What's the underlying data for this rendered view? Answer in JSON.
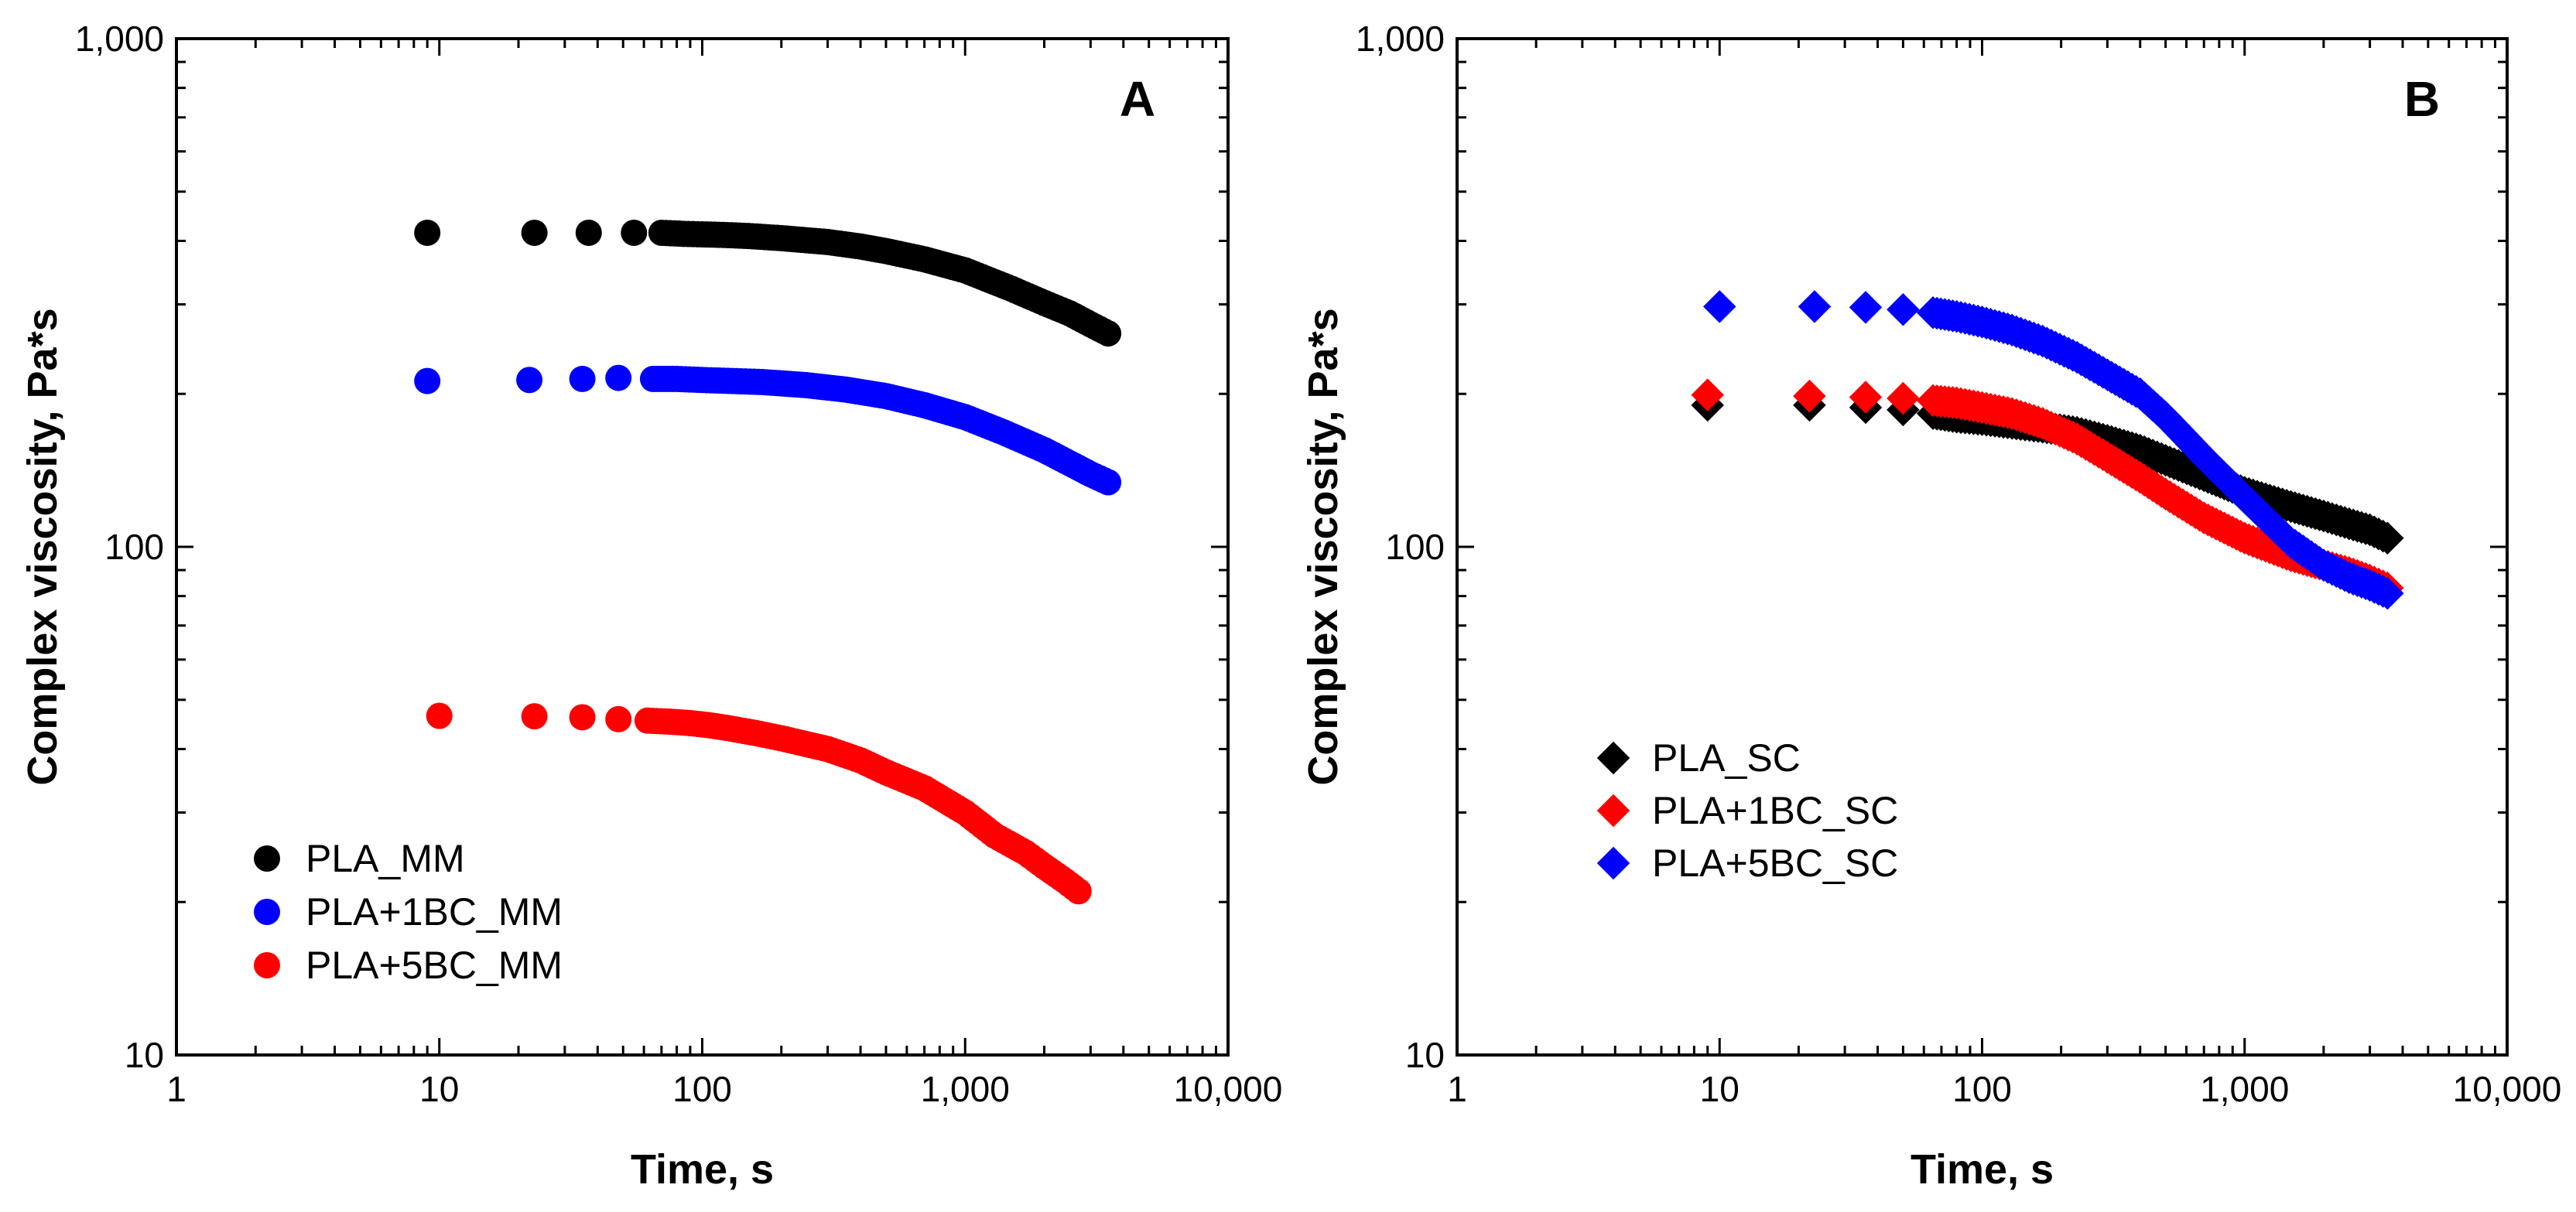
{
  "chart_data": [
    {
      "type": "scatter",
      "panel_label": "A",
      "xlabel": "Time, s",
      "ylabel": "Complex viscosity, Pa*s",
      "xscale": "log",
      "yscale": "log",
      "xlim": [
        1,
        10000
      ],
      "ylim": [
        10,
        1000
      ],
      "xticklabels": [
        "1",
        "10",
        "100",
        "1,000",
        "10,000"
      ],
      "yticklabels": [
        "10",
        "100",
        "1,000"
      ],
      "marker": "circle",
      "legend_position": "lower-left",
      "series": [
        {
          "name": "PLA_MM",
          "color": "#000000",
          "x": [
            9,
            23,
            37,
            55,
            70,
            85,
            100,
            120,
            150,
            200,
            300,
            400,
            500,
            700,
            1000,
            1500,
            2000,
            2500,
            3000,
            3500
          ],
          "y": [
            415,
            415,
            415,
            415,
            415,
            413,
            412,
            411,
            409,
            405,
            398,
            390,
            382,
            368,
            350,
            322,
            302,
            288,
            274,
            263
          ]
        },
        {
          "name": "PLA+1BC_MM",
          "color": "#0000ff",
          "x": [
            9,
            22,
            35,
            48,
            65,
            80,
            100,
            130,
            170,
            250,
            350,
            500,
            700,
            1000,
            1400,
            2000,
            2500,
            3000,
            3500
          ],
          "y": [
            212,
            213,
            214,
            215,
            214,
            214,
            213,
            212,
            211,
            208,
            204,
            198,
            190,
            180,
            168,
            155,
            146,
            139,
            134
          ]
        },
        {
          "name": "PLA+5BC_MM",
          "color": "#ff0000",
          "x": [
            10,
            23,
            35,
            48,
            62,
            75,
            90,
            105,
            125,
            160,
            200,
            300,
            400,
            500,
            700,
            1000,
            1300,
            1700,
            2000,
            2400,
            2700
          ],
          "y": [
            46.5,
            46.4,
            46.2,
            45.8,
            45.5,
            45.3,
            45,
            44.6,
            44,
            43,
            42,
            40,
            38,
            36,
            33.5,
            30,
            27,
            25,
            23.5,
            22,
            21
          ]
        }
      ]
    },
    {
      "type": "scatter",
      "panel_label": "B",
      "xlabel": "Time, s",
      "ylabel": "Complex viscosity, Pa*s",
      "xscale": "log",
      "yscale": "log",
      "xlim": [
        1,
        10000
      ],
      "ylim": [
        10,
        1000
      ],
      "xticklabels": [
        "1",
        "10",
        "100",
        "1,000",
        "10,000"
      ],
      "yticklabels": [
        "10",
        "100",
        "1,000"
      ],
      "marker": "diamond",
      "legend_position": "center-left",
      "series": [
        {
          "name": "PLA_SC",
          "color": "#000000",
          "x": [
            9,
            22,
            36,
            50,
            65,
            80,
            100,
            130,
            170,
            230,
            300,
            400,
            500,
            700,
            1000,
            1500,
            2000,
            2500,
            3000,
            3500
          ],
          "y": [
            190,
            190,
            188,
            186,
            183,
            180,
            178,
            175,
            172,
            168,
            162,
            155,
            148,
            138,
            128,
            120,
            115,
            111,
            108,
            104
          ]
        },
        {
          "name": "PLA+1BC_SC",
          "color": "#ff0000",
          "x": [
            9,
            22,
            36,
            50,
            65,
            80,
            100,
            130,
            170,
            230,
            300,
            400,
            500,
            700,
            1000,
            1500,
            2000,
            2500,
            3000,
            3500
          ],
          "y": [
            199,
            198,
            197,
            196,
            194,
            192,
            188,
            183,
            175,
            163,
            150,
            137,
            127,
            114,
            104,
            96,
            92,
            89,
            86,
            83
          ]
        },
        {
          "name": "PLA+5BC_SC",
          "color": "#0000ff",
          "x": [
            10,
            23,
            36,
            50,
            65,
            80,
            100,
            130,
            170,
            230,
            300,
            400,
            500,
            700,
            1000,
            1500,
            2000,
            2500,
            3000,
            3500
          ],
          "y": [
            297,
            297,
            296,
            293,
            289,
            284,
            277,
            267,
            254,
            236,
            218,
            200,
            180,
            150,
            125,
            102,
            92,
            87,
            84,
            81
          ]
        }
      ]
    }
  ]
}
